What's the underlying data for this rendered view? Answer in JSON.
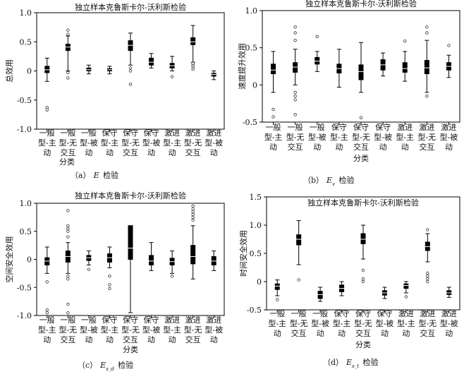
{
  "panels": [
    {
      "id": "a",
      "title": "独立样本克鲁斯卡尔-沃利斯检验",
      "ylabel": "总效用",
      "xlabel": "分类",
      "caption_prefix": "（a）",
      "caption_symbol": "E",
      "caption_sub": "",
      "caption_suffix": " 检验",
      "yticks": [
        "-1.0",
        "-0.5",
        "0",
        "0.5",
        "1.0"
      ],
      "ylim": [
        -1.0,
        1.0
      ],
      "categories": [
        [
          "一般",
          "型-主",
          "动"
        ],
        [
          "一般",
          "型-无",
          "交互"
        ],
        [
          "一般",
          "型-被",
          "动"
        ],
        [
          "保守",
          "型-主",
          "动"
        ],
        [
          "保守",
          "型-无",
          "交互"
        ],
        [
          "保守",
          "型-被",
          "动"
        ],
        [
          "激进",
          "型-主",
          "动"
        ],
        [
          "激进",
          "型-无",
          "交互"
        ],
        [
          "激进",
          "型-被",
          "动"
        ]
      ]
    },
    {
      "id": "b",
      "title": "独立样本克鲁斯卡尔-沃利斯检验",
      "ylabel": "速度提升效用",
      "xlabel": "分类",
      "caption_prefix": "（b）",
      "caption_symbol": "E",
      "caption_sub": "v",
      "caption_suffix": " 检验",
      "yticks": [
        "-0.5",
        "0",
        "0.5",
        "1.0"
      ],
      "ylim": [
        -0.5,
        1.0
      ],
      "categories": [
        [
          "一般",
          "型-主",
          "动"
        ],
        [
          "一般",
          "型-无",
          "交互"
        ],
        [
          "一般",
          "型-被",
          "动"
        ],
        [
          "保守",
          "型-主",
          "动"
        ],
        [
          "保守",
          "型-无",
          "交互"
        ],
        [
          "保守",
          "型-被",
          "动"
        ],
        [
          "激进",
          "型-主",
          "动"
        ],
        [
          "激进",
          "型-无",
          "交互"
        ],
        [
          "激进",
          "型-被",
          "动"
        ]
      ]
    },
    {
      "id": "c",
      "title": "独立样本克鲁斯卡尔-沃利斯检验",
      "ylabel": "空间安全效用",
      "xlabel": "分类",
      "caption_prefix": "（c）",
      "caption_symbol": "E",
      "caption_sub": "s_d",
      "caption_suffix": " 检验",
      "yticks": [
        "-1.0",
        "-0.5",
        "0",
        "0.5",
        "1.0"
      ],
      "ylim": [
        -1.0,
        1.0
      ],
      "categories": [
        [
          "一般",
          "型-主",
          "动"
        ],
        [
          "一般",
          "型-无",
          "交互"
        ],
        [
          "一般",
          "型-被",
          "动"
        ],
        [
          "保守",
          "型-主",
          "动"
        ],
        [
          "保守",
          "型-无",
          "交互"
        ],
        [
          "保守",
          "型-被",
          "动"
        ],
        [
          "激进",
          "型-主",
          "动"
        ],
        [
          "激进",
          "型-无",
          "交互"
        ],
        [
          "激进",
          "型-被",
          "动"
        ]
      ]
    },
    {
      "id": "d",
      "title": "独立样本克鲁斯卡尔-沃利斯检验",
      "ylabel": "时间安全效用",
      "xlabel": "分类",
      "caption_prefix": "（d）",
      "caption_symbol": "E",
      "caption_sub": "s_t",
      "caption_suffix": " 检验",
      "yticks": [
        "-0.5",
        "0",
        "0.5",
        "1.0",
        "1.5"
      ],
      "ylim": [
        -0.5,
        1.5
      ],
      "categories": [
        [
          "一般",
          "型-主",
          "动"
        ],
        [
          "一般",
          "型-无",
          "交互"
        ],
        [
          "一般",
          "型-被",
          "动"
        ],
        [
          "保守",
          "型-主",
          "动"
        ],
        [
          "保守",
          "型-无",
          "交互"
        ],
        [
          "保守",
          "型-被",
          "动"
        ],
        [
          "激进",
          "型-主",
          "动"
        ],
        [
          "激进",
          "型-无",
          "交互"
        ],
        [
          "激进",
          "型-被",
          "动"
        ]
      ]
    }
  ],
  "chart_data": [
    {
      "type": "box",
      "title": "独立样本克鲁斯卡尔-沃利斯检验",
      "xlabel": "分类",
      "ylabel": "总效用",
      "ylim": [
        -1.0,
        1.0
      ],
      "categories": [
        "一般型-主动",
        "一般型-无交互",
        "一般型-被动",
        "保守型-主动",
        "保守型-无交互",
        "保守型-被动",
        "激进型-主动",
        "激进型-无交互",
        "激进型-被动"
      ],
      "boxes": [
        {
          "min": -0.18,
          "q1": -0.03,
          "median": 0.02,
          "q3": 0.08,
          "max": 0.22,
          "outliers": [
            -0.63,
            -0.67
          ]
        },
        {
          "min": 0.0,
          "q1": 0.35,
          "median": 0.41,
          "q3": 0.46,
          "max": 0.6,
          "outliers": [
            -0.12,
            0.63,
            0.7,
            -0.03
          ]
        },
        {
          "min": -0.05,
          "q1": 0.0,
          "median": 0.02,
          "q3": 0.05,
          "max": 0.1,
          "outliers": []
        },
        {
          "min": -0.05,
          "q1": 0.0,
          "median": 0.02,
          "q3": 0.04,
          "max": 0.08,
          "outliers": []
        },
        {
          "min": 0.1,
          "q1": 0.35,
          "median": 0.44,
          "q3": 0.52,
          "max": 0.65,
          "outliers": [
            0.0,
            0.05,
            -0.23
          ]
        },
        {
          "min": 0.05,
          "q1": 0.1,
          "median": 0.15,
          "q3": 0.22,
          "max": 0.3,
          "outliers": []
        },
        {
          "min": 0.0,
          "q1": 0.05,
          "median": 0.09,
          "q3": 0.13,
          "max": 0.25,
          "outliers": [
            -0.1
          ]
        },
        {
          "min": 0.15,
          "q1": 0.45,
          "median": 0.5,
          "q3": 0.57,
          "max": 0.78,
          "outliers": [
            0.03,
            0.07,
            0.1,
            0.13
          ]
        },
        {
          "min": -0.15,
          "q1": -0.09,
          "median": -0.06,
          "q3": -0.04,
          "max": 0.0,
          "outliers": []
        }
      ]
    },
    {
      "type": "box",
      "title": "独立样本克鲁斯卡尔-沃利斯检验",
      "xlabel": "分类",
      "ylabel": "速度提升效用",
      "ylim": [
        -0.5,
        1.0
      ],
      "categories": [
        "一般型-主动",
        "一般型-无交互",
        "一般型-被动",
        "保守型-主动",
        "保守型-无交互",
        "保守型-被动",
        "激进型-主动",
        "激进型-无交互",
        "激进型-被动"
      ],
      "boxes": [
        {
          "min": -0.1,
          "q1": 0.15,
          "median": 0.2,
          "q3": 0.28,
          "max": 0.45,
          "outliers": [
            -0.33,
            -0.43
          ]
        },
        {
          "min": 0.0,
          "q1": 0.17,
          "median": 0.24,
          "q3": 0.3,
          "max": 0.48,
          "outliers": [
            -0.1,
            -0.15,
            -0.2,
            -0.4,
            0.6,
            0.7,
            0.78
          ]
        },
        {
          "min": 0.18,
          "q1": 0.28,
          "median": 0.32,
          "q3": 0.37,
          "max": 0.45,
          "outliers": [
            0.65
          ]
        },
        {
          "min": -0.03,
          "q1": 0.16,
          "median": 0.22,
          "q3": 0.28,
          "max": 0.48,
          "outliers": []
        },
        {
          "min": -0.1,
          "q1": 0.07,
          "median": 0.18,
          "q3": 0.27,
          "max": 0.57,
          "outliers": [
            -0.44
          ]
        },
        {
          "min": 0.12,
          "q1": 0.2,
          "median": 0.27,
          "q3": 0.34,
          "max": 0.43,
          "outliers": []
        },
        {
          "min": 0.05,
          "q1": 0.17,
          "median": 0.22,
          "q3": 0.3,
          "max": 0.45,
          "outliers": [
            0.59
          ]
        },
        {
          "min": -0.1,
          "q1": 0.15,
          "median": 0.23,
          "q3": 0.33,
          "max": 0.6,
          "outliers": [
            -0.15,
            0.7,
            0.78
          ]
        },
        {
          "min": 0.1,
          "q1": 0.2,
          "median": 0.25,
          "q3": 0.3,
          "max": 0.4,
          "outliers": [
            0.53
          ]
        }
      ]
    },
    {
      "type": "box",
      "title": "独立样本克鲁斯卡尔-沃利斯检验",
      "xlabel": "分类",
      "ylabel": "空间安全效用",
      "ylim": [
        -1.0,
        1.0
      ],
      "categories": [
        "一般型-主动",
        "一般型-无交互",
        "一般型-被动",
        "保守型-主动",
        "保守型-无交互",
        "保守型-被动",
        "激进型-主动",
        "激进型-无交互",
        "激进型-被动"
      ],
      "boxes": [
        {
          "min": -0.25,
          "q1": -0.1,
          "median": -0.03,
          "q3": 0.03,
          "max": 0.22,
          "outliers": [
            -0.4,
            -0.9,
            -0.95
          ]
        },
        {
          "min": -0.25,
          "q1": -0.05,
          "median": 0.05,
          "q3": 0.15,
          "max": 0.3,
          "outliers": [
            -0.3,
            -0.35,
            -0.8,
            -0.95,
            0.4,
            0.5,
            0.55,
            0.6,
            0.87
          ]
        },
        {
          "min": -0.1,
          "q1": -0.02,
          "median": 0.03,
          "q3": 0.07,
          "max": 0.15,
          "outliers": [
            -0.18
          ]
        },
        {
          "min": -0.15,
          "q1": -0.05,
          "median": 0.03,
          "q3": 0.1,
          "max": 0.22,
          "outliers": [
            -0.3,
            -0.45,
            -0.52
          ]
        },
        {
          "min": -0.95,
          "q1": 0.0,
          "median": 0.2,
          "q3": 0.6,
          "max": 0.6,
          "outliers": []
        },
        {
          "min": -0.2,
          "q1": -0.1,
          "median": -0.03,
          "q3": 0.07,
          "max": 0.3,
          "outliers": []
        },
        {
          "min": -0.25,
          "q1": -0.1,
          "median": -0.04,
          "q3": 0.02,
          "max": 0.15,
          "outliers": [
            -0.3
          ]
        },
        {
          "min": -0.35,
          "q1": -0.08,
          "median": 0.05,
          "q3": 0.25,
          "max": 0.6,
          "outliers": [
            0.7,
            0.75,
            0.8,
            0.85,
            0.9,
            0.95
          ]
        },
        {
          "min": -0.2,
          "q1": -0.1,
          "median": -0.03,
          "q3": 0.05,
          "max": 0.15,
          "outliers": []
        }
      ]
    },
    {
      "type": "box",
      "title": "独立样本克鲁斯卡尔-沃利斯检验",
      "xlabel": "分类",
      "ylabel": "时间安全效用",
      "ylim": [
        -0.5,
        1.5
      ],
      "categories": [
        "一般型-主动",
        "一般型-无交互",
        "一般型-被动",
        "保守型-主动",
        "保守型-无交互",
        "保守型-被动",
        "激进型-主动",
        "激进型-无交互",
        "激进型-被动"
      ],
      "boxes": [
        {
          "min": -0.25,
          "q1": -0.14,
          "median": -0.08,
          "q3": -0.04,
          "max": 0.03,
          "outliers": [
            -0.32
          ]
        },
        {
          "min": 0.3,
          "q1": 0.65,
          "median": 0.75,
          "q3": 0.83,
          "max": 1.08,
          "outliers": [
            0.03
          ]
        },
        {
          "min": -0.35,
          "q1": -0.3,
          "median": -0.23,
          "q3": -0.17,
          "max": -0.1,
          "outliers": []
        },
        {
          "min": -0.25,
          "q1": -0.18,
          "median": -0.12,
          "q3": -0.06,
          "max": 0.0,
          "outliers": []
        },
        {
          "min": 0.4,
          "q1": 0.67,
          "median": 0.75,
          "q3": 0.85,
          "max": 1.0,
          "outliers": [
            0.0,
            0.05,
            0.2
          ]
        },
        {
          "min": -0.3,
          "q1": -0.24,
          "median": -0.2,
          "q3": -0.16,
          "max": -0.1,
          "outliers": []
        },
        {
          "min": -0.2,
          "q1": -0.12,
          "median": -0.07,
          "q3": -0.04,
          "max": 0.0,
          "outliers": [
            -0.27
          ]
        },
        {
          "min": 0.35,
          "q1": 0.55,
          "median": 0.62,
          "q3": 0.7,
          "max": 0.85,
          "outliers": [
            0.0,
            0.05,
            0.1,
            0.15,
            0.92
          ]
        },
        {
          "min": -0.28,
          "q1": -0.23,
          "median": -0.2,
          "q3": -0.16,
          "max": -0.1,
          "outliers": []
        }
      ]
    }
  ]
}
